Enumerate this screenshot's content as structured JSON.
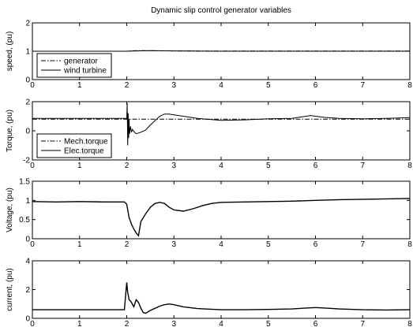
{
  "figure": {
    "title": "Dynamic slip control generator variables"
  },
  "chart_data": [
    {
      "type": "line",
      "ylabel": "speed, (pu)",
      "xlabel": "",
      "xlim": [
        0,
        8
      ],
      "ylim": [
        0,
        2
      ],
      "xticks": [
        0,
        1,
        2,
        3,
        4,
        5,
        6,
        7,
        8
      ],
      "yticks": [
        0,
        1,
        2
      ],
      "legend": "bottom-left",
      "series": [
        {
          "name": "generator",
          "style": "dashdot",
          "x": [
            0,
            2.0,
            2.05,
            2.2,
            2.4,
            2.7,
            3.0,
            4.0,
            5.0,
            6.0,
            7.0,
            8.0
          ],
          "y": [
            1.0,
            1.0,
            1.01,
            1.02,
            1.02,
            1.015,
            1.01,
            1.005,
            1.005,
            1.005,
            1.005,
            1.005
          ]
        },
        {
          "name": "wind turbine",
          "style": "solid",
          "x": [
            0,
            2.0,
            2.2,
            2.5,
            3.0,
            4.0,
            5.0,
            6.0,
            7.0,
            8.0
          ],
          "y": [
            1.0,
            1.0,
            1.01,
            1.02,
            1.01,
            1.0,
            1.0,
            1.0,
            1.0,
            1.0
          ]
        }
      ]
    },
    {
      "type": "line",
      "ylabel": "Torque, (pu)",
      "xlabel": "",
      "xlim": [
        0,
        8
      ],
      "ylim": [
        -2,
        2
      ],
      "xticks": [
        0,
        1,
        2,
        3,
        4,
        5,
        6,
        7,
        8
      ],
      "yticks": [
        -2,
        0,
        2
      ],
      "legend": "bottom-left",
      "series": [
        {
          "name": "Mech.torque",
          "style": "dashdot",
          "x": [
            0,
            1.0,
            2.0,
            3.0,
            4.0,
            5.0,
            6.0,
            7.0,
            8.0
          ],
          "y": [
            0.8,
            0.8,
            0.8,
            0.8,
            0.8,
            0.8,
            0.8,
            0.8,
            0.8
          ]
        },
        {
          "name": "Elec.torque",
          "style": "solid",
          "x": [
            0,
            1.9,
            2.0,
            2.01,
            2.02,
            2.03,
            2.04,
            2.05,
            2.06,
            2.08,
            2.1,
            2.12,
            2.15,
            2.2,
            2.25,
            2.3,
            2.4,
            2.5,
            2.6,
            2.7,
            2.8,
            2.9,
            3.0,
            3.2,
            3.5,
            4.0,
            4.5,
            5.0,
            5.5,
            5.7,
            5.8,
            5.9,
            6.0,
            6.2,
            6.5,
            7.0,
            7.5,
            8.0
          ],
          "y": [
            0.85,
            0.85,
            0.85,
            1.9,
            -1.0,
            1.2,
            -0.5,
            0.8,
            -0.2,
            0.3,
            -0.1,
            0.1,
            -0.05,
            -0.2,
            -0.15,
            -0.1,
            0.05,
            0.4,
            0.7,
            1.0,
            1.15,
            1.15,
            1.1,
            1.0,
            0.85,
            0.72,
            0.75,
            0.82,
            0.85,
            0.95,
            1.0,
            1.05,
            1.0,
            0.92,
            0.85,
            0.82,
            0.85,
            0.9
          ]
        }
      ]
    },
    {
      "type": "line",
      "ylabel": "Voltage, (pu)",
      "xlabel": "",
      "xlim": [
        0,
        8
      ],
      "ylim": [
        0,
        1.5
      ],
      "xticks": [
        0,
        1,
        2,
        3,
        4,
        5,
        6,
        7,
        8
      ],
      "yticks": [
        0,
        0.5,
        1,
        1.5
      ],
      "legend": "none",
      "series": [
        {
          "name": "",
          "style": "solid",
          "x": [
            0,
            0.5,
            1.0,
            1.5,
            1.95,
            2.0,
            2.05,
            2.1,
            2.15,
            2.2,
            2.25,
            2.3,
            2.4,
            2.5,
            2.6,
            2.7,
            2.8,
            2.9,
            3.0,
            3.2,
            3.4,
            3.6,
            3.8,
            4.0,
            4.5,
            5.0,
            5.5,
            6.0,
            6.5,
            7.0,
            7.5,
            8.0
          ],
          "y": [
            0.97,
            0.96,
            0.97,
            0.96,
            0.96,
            0.9,
            0.55,
            0.38,
            0.25,
            0.15,
            0.08,
            0.45,
            0.65,
            0.82,
            0.92,
            0.95,
            0.92,
            0.82,
            0.75,
            0.72,
            0.78,
            0.86,
            0.92,
            0.95,
            0.96,
            0.97,
            0.98,
            1.0,
            1.02,
            1.03,
            1.04,
            1.05
          ]
        }
      ]
    },
    {
      "type": "line",
      "ylabel": "current, (pu)",
      "xlabel": "",
      "xlim": [
        0,
        8
      ],
      "ylim": [
        0,
        4
      ],
      "xticks": [
        0,
        1,
        2,
        3,
        4,
        5,
        6,
        7,
        8
      ],
      "yticks": [
        0,
        2,
        4
      ],
      "legend": "none",
      "series": [
        {
          "name": "",
          "style": "solid",
          "x": [
            0,
            1.0,
            1.95,
            2.0,
            2.02,
            2.05,
            2.08,
            2.1,
            2.15,
            2.2,
            2.25,
            2.3,
            2.35,
            2.4,
            2.5,
            2.6,
            2.7,
            2.8,
            2.9,
            3.0,
            3.2,
            3.5,
            4.0,
            4.5,
            5.0,
            5.5,
            5.8,
            6.0,
            6.2,
            6.5,
            7.0,
            7.5,
            8.0
          ],
          "y": [
            0.6,
            0.6,
            0.6,
            2.5,
            1.8,
            1.3,
            1.2,
            1.1,
            0.8,
            1.3,
            1.1,
            0.7,
            0.4,
            0.35,
            0.55,
            0.7,
            0.85,
            0.95,
            1.0,
            0.95,
            0.8,
            0.68,
            0.6,
            0.6,
            0.62,
            0.65,
            0.72,
            0.75,
            0.72,
            0.65,
            0.6,
            0.58,
            0.6
          ]
        }
      ]
    }
  ]
}
